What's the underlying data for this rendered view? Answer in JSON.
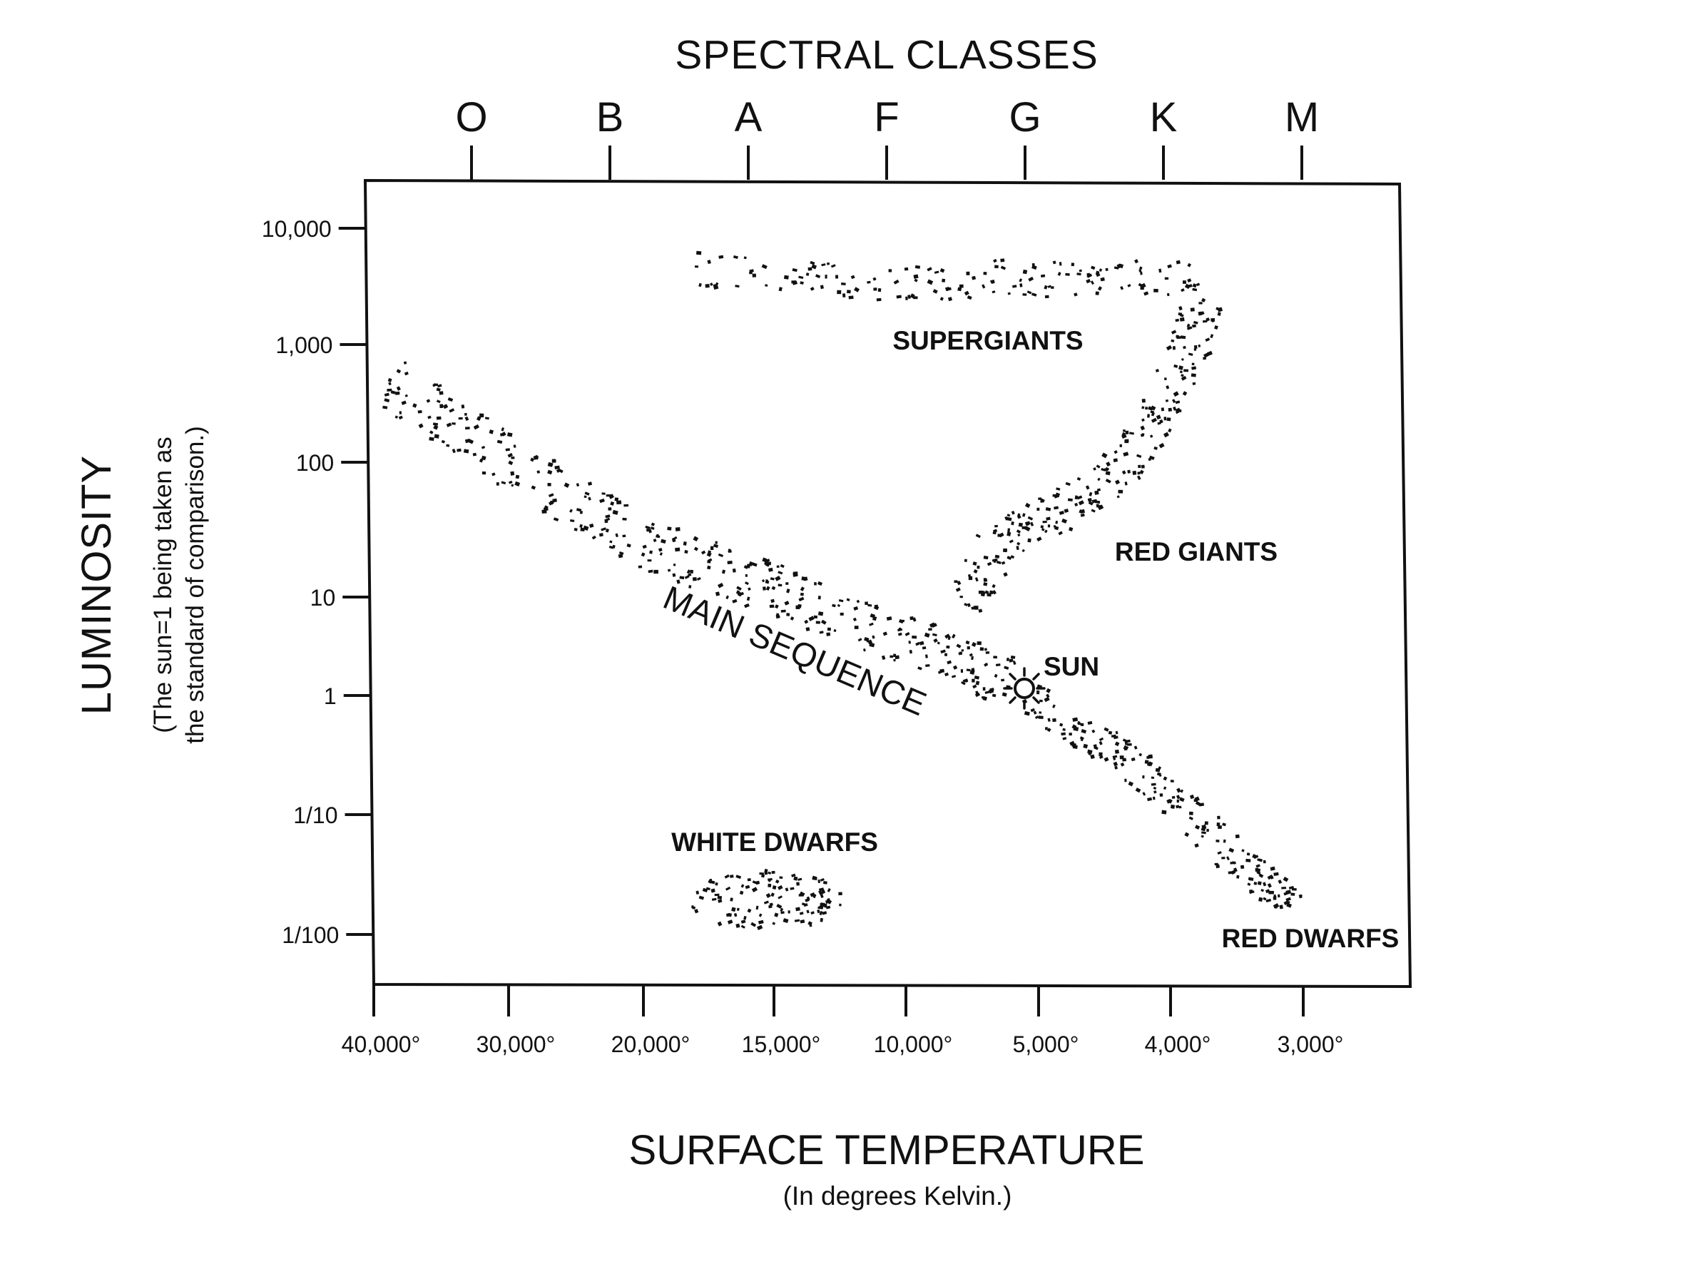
{
  "chart_data": {
    "type": "scatter",
    "title": "SPECTRAL CLASSES",
    "spectral_classes": [
      "O",
      "B",
      "A",
      "F",
      "G",
      "K",
      "M"
    ],
    "xlabel": "SURFACE TEMPERATURE",
    "xlabel_sub": "(In degrees Kelvin.)",
    "ylabel": "LUMINOSITY",
    "ylabel_sub": [
      "(The sun=1 being taken as",
      "the standard of comparison.)"
    ],
    "y_scale": "log",
    "ylim": [
      0.005,
      20000
    ],
    "y_ticks": [
      {
        "value": 10000,
        "label": "10,000"
      },
      {
        "value": 1000,
        "label": "1,000"
      },
      {
        "value": 100,
        "label": "100"
      },
      {
        "value": 10,
        "label": "10"
      },
      {
        "value": 1,
        "label": "1"
      },
      {
        "value": 0.1,
        "label": "1/10"
      },
      {
        "value": 0.01,
        "label": "1/100"
      }
    ],
    "x_ticks": [
      "40,000°",
      "30,000°",
      "20,000°",
      "15,000°",
      "10,000°",
      "5,000°",
      "4,000°",
      "3,000°"
    ],
    "x_direction": "temperature decreases left to right",
    "grid": false,
    "groups": [
      {
        "label": "SUPERGIANTS",
        "luminosity_range": [
          1500,
          5000
        ],
        "temperature_range": [
          "18,000°",
          "3,800°"
        ]
      },
      {
        "label": "MAIN SEQUENCE",
        "luminosity_range": [
          0.01,
          500
        ],
        "temperature_range": [
          "40,000°",
          "3,000°"
        ]
      },
      {
        "label": "RED GIANTS",
        "luminosity_range": [
          10,
          700
        ],
        "temperature_range": [
          "6,000°",
          "3,800°"
        ]
      },
      {
        "label": "WHITE DWARFS",
        "luminosity_range": [
          0.008,
          0.04
        ],
        "temperature_range": [
          "18,000°",
          "12,000°"
        ]
      },
      {
        "label": "RED DWARFS",
        "luminosity_range": [
          0.01,
          0.1
        ],
        "temperature_range": [
          "4,000°",
          "3,000°"
        ]
      }
    ],
    "marker": {
      "label": "SUN",
      "luminosity": 1,
      "temperature": "5,800°"
    }
  }
}
